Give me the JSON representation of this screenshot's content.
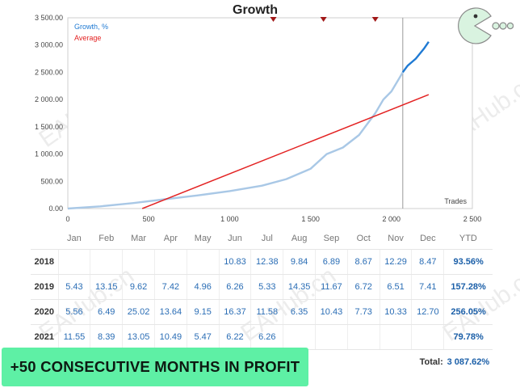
{
  "chart": {
    "title": "Growth",
    "legend": [
      {
        "label": "Growth, %",
        "color": "#1f7ad3"
      },
      {
        "label": "Average",
        "color": "#e32222"
      }
    ],
    "trades_label": "Trades",
    "y_ticks": [
      "3 500.00",
      "3 000.00",
      "2 500.00",
      "2 000.00",
      "1 500.00",
      "1 000.00",
      "500.00",
      "0.00"
    ],
    "x_ticks": [
      "0",
      "500",
      "1 000",
      "1 500",
      "2 000",
      "2 500"
    ]
  },
  "chart_data": {
    "type": "line",
    "title": "Growth",
    "xlabel": "Trades",
    "ylabel": "",
    "xlim": [
      0,
      2500
    ],
    "ylim": [
      0,
      3500
    ],
    "grid": false,
    "legend_position": "top-left",
    "series": [
      {
        "name": "Growth, %",
        "x": [
          0,
          200,
          400,
          600,
          800,
          1000,
          1200,
          1350,
          1500,
          1600,
          1700,
          1800,
          1900,
          1950,
          2000,
          2050,
          2070,
          2100,
          2150,
          2200,
          2230
        ],
        "y": [
          0,
          40,
          100,
          170,
          240,
          320,
          420,
          540,
          730,
          1000,
          1120,
          1350,
          1750,
          2000,
          2150,
          2400,
          2500,
          2620,
          2750,
          2930,
          3060
        ]
      },
      {
        "name": "Average",
        "x": [
          460,
          2230
        ],
        "y": [
          0,
          2090
        ]
      }
    ],
    "markers": {
      "type": "triangle-down",
      "x": [
        1270,
        1580,
        1900
      ]
    },
    "vertical_line_x": 2070
  },
  "table": {
    "headers": [
      "Jan",
      "Feb",
      "Mar",
      "Apr",
      "May",
      "Jun",
      "Jul",
      "Aug",
      "Sep",
      "Oct",
      "Nov",
      "Dec",
      "YTD"
    ],
    "rows": [
      {
        "year": "2018",
        "values": [
          "",
          "",
          "",
          "",
          "",
          "10.83",
          "12.38",
          "9.84",
          "6.89",
          "8.67",
          "12.29",
          "8.47"
        ],
        "ytd": "93.56%"
      },
      {
        "year": "2019",
        "values": [
          "5.43",
          "13.15",
          "9.62",
          "7.42",
          "4.96",
          "6.26",
          "5.33",
          "14.35",
          "11.67",
          "6.72",
          "6.51",
          "7.41"
        ],
        "ytd": "157.28%"
      },
      {
        "year": "2020",
        "values": [
          "5.56",
          "6.49",
          "25.02",
          "13.64",
          "9.15",
          "16.37",
          "11.58",
          "6.35",
          "10.43",
          "7.73",
          "10.33",
          "12.70"
        ],
        "ytd": "256.05%"
      },
      {
        "year": "2021",
        "values": [
          "11.55",
          "8.39",
          "13.05",
          "10.49",
          "5.47",
          "6.22",
          "6.26",
          "",
          "",
          "",
          "",
          ""
        ],
        "ytd": "79.78%"
      }
    ],
    "total_label": "Total:",
    "total_value": "3 087.62%"
  },
  "promo": {
    "text": "+50 CONSECUTIVE MONTHS IN PROFIT"
  },
  "watermark": {
    "text": "EAHub.cn"
  },
  "icons": {
    "logo": "pacman-logo-icon",
    "marker": "triangle-down-marker-icon"
  }
}
